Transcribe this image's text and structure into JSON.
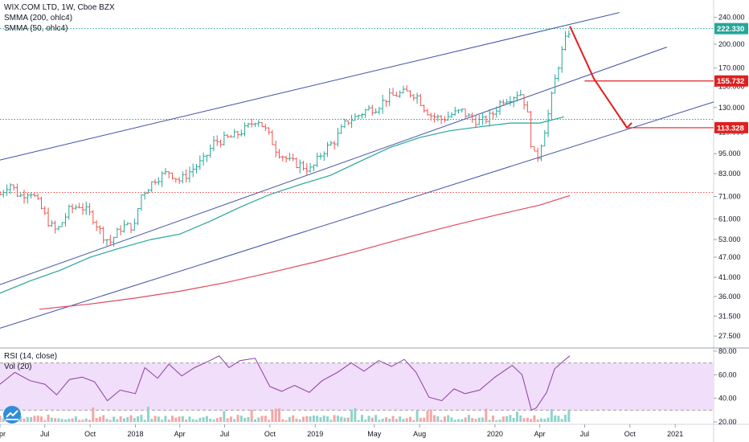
{
  "legend": {
    "main_title": "WIX.COM LTD, 1W, Cboe BZX",
    "ind1": "SMMA (200, ohlc4)",
    "ind2": "SMMA (50, ohlc4)",
    "rsi_label": "RSI (14, close)",
    "vol_label": "Vol (20)"
  },
  "colors": {
    "up": "#26a69a",
    "down": "#ef5350",
    "channel": "#3f51a5",
    "smma50": "#26a69a",
    "smma200": "#e04a5f",
    "arrow": "#e02020",
    "rsi_line": "#8e3ea0",
    "rsi_band": "#f0defa"
  },
  "chart_data": [
    {
      "type": "candlestick",
      "symbol": "WIX.COM LTD",
      "interval": "1W",
      "exchange": "Cboe BZX",
      "y_axis": {
        "scale": "log",
        "ylim": [
          25.5,
          270
        ],
        "ticks": [
          "240.000",
          "200.000",
          "170.000",
          "150.000",
          "130.000",
          "110.000",
          "95.000",
          "83.000",
          "71.000",
          "61.000",
          "53.000",
          "47.000",
          "41.000",
          "36.000",
          "31.500",
          "27.500"
        ]
      },
      "x_axis": {
        "range": [
          "2017-04-01",
          "2021-03-20"
        ],
        "ticks": [
          {
            "date": "2017-04-01",
            "label": "Apr"
          },
          {
            "date": "2017-07-01",
            "label": "Jul"
          },
          {
            "date": "2017-10-01",
            "label": "Oct"
          },
          {
            "date": "2018-01-01",
            "label": "2018"
          },
          {
            "date": "2018-04-01",
            "label": "Apr"
          },
          {
            "date": "2018-07-01",
            "label": "Jul"
          },
          {
            "date": "2018-10-01",
            "label": "Oct"
          },
          {
            "date": "2019-01-01",
            "label": "2019"
          },
          {
            "date": "2019-05-01",
            "label": "May"
          },
          {
            "date": "2019-08-01",
            "label": "Aug"
          },
          {
            "date": "2020-01-01",
            "label": "2020"
          },
          {
            "date": "2020-04-01",
            "label": "Apr"
          },
          {
            "date": "2020-07-01",
            "label": "Jul"
          },
          {
            "date": "2020-10-01",
            "label": "Oct"
          },
          {
            "date": "2021-01-01",
            "label": "2021"
          }
        ]
      },
      "price_path": [
        [
          "2017-04-01",
          72
        ],
        [
          "2017-04-20",
          78
        ],
        [
          "2017-05-10",
          71
        ],
        [
          "2017-06-01",
          74
        ],
        [
          "2017-06-20",
          67
        ],
        [
          "2017-07-10",
          59
        ],
        [
          "2017-07-25",
          56
        ],
        [
          "2017-08-20",
          65
        ],
        [
          "2017-09-10",
          67
        ],
        [
          "2017-10-05",
          62
        ],
        [
          "2017-10-25",
          55
        ],
        [
          "2017-11-10",
          52
        ],
        [
          "2017-12-05",
          58
        ],
        [
          "2017-12-31",
          58
        ],
        [
          "2018-01-10",
          71
        ],
        [
          "2018-02-10",
          80
        ],
        [
          "2018-03-10",
          84
        ],
        [
          "2018-04-01",
          79
        ],
        [
          "2018-04-25",
          85
        ],
        [
          "2018-05-20",
          91
        ],
        [
          "2018-06-10",
          103
        ],
        [
          "2018-06-25",
          104
        ],
        [
          "2018-07-20",
          107
        ],
        [
          "2018-08-15",
          113
        ],
        [
          "2018-09-05",
          121
        ],
        [
          "2018-09-25",
          110
        ],
        [
          "2018-10-15",
          97
        ],
        [
          "2018-11-10",
          90
        ],
        [
          "2018-12-01",
          88
        ],
        [
          "2018-12-24",
          85
        ],
        [
          "2019-01-15",
          96
        ],
        [
          "2019-02-10",
          104
        ],
        [
          "2019-03-05",
          118
        ],
        [
          "2019-03-25",
          122
        ],
        [
          "2019-04-15",
          128
        ],
        [
          "2019-05-05",
          130
        ],
        [
          "2019-05-25",
          138
        ],
        [
          "2019-06-15",
          142
        ],
        [
          "2019-07-05",
          144
        ],
        [
          "2019-07-25",
          142
        ],
        [
          "2019-08-10",
          130
        ],
        [
          "2019-08-25",
          123
        ],
        [
          "2019-09-15",
          120
        ],
        [
          "2019-10-05",
          124
        ],
        [
          "2019-10-25",
          127
        ],
        [
          "2019-11-15",
          120
        ],
        [
          "2019-12-05",
          118
        ],
        [
          "2019-12-25",
          123
        ],
        [
          "2020-01-15",
          137
        ],
        [
          "2020-02-05",
          140
        ],
        [
          "2020-02-20",
          145
        ],
        [
          "2020-03-05",
          130
        ],
        [
          "2020-03-15",
          100
        ],
        [
          "2020-03-25",
          90
        ],
        [
          "2020-04-15",
          118
        ],
        [
          "2020-05-05",
          165
        ],
        [
          "2020-05-20",
          200
        ],
        [
          "2020-06-01",
          222
        ]
      ],
      "smma50": [
        [
          "2017-04-01",
          36.8
        ],
        [
          "2017-06-01",
          40
        ],
        [
          "2017-08-01",
          43
        ],
        [
          "2017-10-01",
          47
        ],
        [
          "2017-12-01",
          50
        ],
        [
          "2018-02-01",
          53
        ],
        [
          "2018-04-01",
          55
        ],
        [
          "2018-06-01",
          60
        ],
        [
          "2018-08-01",
          66
        ],
        [
          "2018-10-01",
          72
        ],
        [
          "2018-12-01",
          77
        ],
        [
          "2019-02-01",
          82
        ],
        [
          "2019-04-01",
          90
        ],
        [
          "2019-06-01",
          99
        ],
        [
          "2019-08-01",
          106
        ],
        [
          "2019-10-01",
          111
        ],
        [
          "2019-12-01",
          114
        ],
        [
          "2020-02-01",
          117
        ],
        [
          "2020-04-01",
          117
        ],
        [
          "2020-05-20",
          122
        ]
      ],
      "smma200": [
        [
          "2017-06-20",
          33
        ],
        [
          "2017-10-01",
          34.2
        ],
        [
          "2018-01-01",
          35.6
        ],
        [
          "2018-04-01",
          37.3
        ],
        [
          "2018-07-01",
          39.5
        ],
        [
          "2018-10-01",
          42.3
        ],
        [
          "2019-01-01",
          45.5
        ],
        [
          "2019-04-01",
          49.2
        ],
        [
          "2019-07-01",
          53.5
        ],
        [
          "2019-10-01",
          58
        ],
        [
          "2020-01-01",
          62.5
        ],
        [
          "2020-04-01",
          67
        ],
        [
          "2020-06-01",
          71.5
        ]
      ],
      "channel_lines": [
        {
          "from": [
            "2017-04-01",
            91
          ],
          "to": [
            "2020-09-10",
            248
          ]
        },
        {
          "from": [
            "2017-04-01",
            39
          ],
          "to": [
            "2020-12-15",
            196
          ]
        },
        {
          "from": [
            "2017-04-01",
            29
          ],
          "to": [
            "2021-03-20",
            135
          ]
        }
      ],
      "horizontal_levels": [
        {
          "value": 222.33,
          "style": "dotted",
          "color": "#26a69a"
        },
        {
          "value": 120,
          "style": "dotted",
          "color": "#26a69a"
        },
        {
          "value": 73,
          "style": "dotted",
          "color": "#ef5350"
        }
      ],
      "target_lines": [
        {
          "value": 155.732,
          "from": "2020-07-01"
        },
        {
          "value": 113.328,
          "from": "2020-09-25"
        }
      ],
      "projection_arrow": [
        [
          "2020-06-01",
          226
        ],
        [
          "2020-07-20",
          158
        ],
        [
          "2020-09-25",
          113.328
        ]
      ],
      "price_labels": [
        {
          "value": 222.33,
          "text": "222.330",
          "color": "#26a69a"
        },
        {
          "value": 155.732,
          "text": "155.732",
          "color": "#e02020"
        },
        {
          "value": 113.328,
          "text": "113.328",
          "color": "#e02020"
        }
      ]
    },
    {
      "type": "line",
      "name": "RSI (14, close)",
      "ylim": [
        18,
        82
      ],
      "ticks": [
        "80.00",
        "60.00",
        "40.00",
        "20.00"
      ],
      "band": [
        30,
        70
      ],
      "points": [
        [
          "2017-04-01",
          52
        ],
        [
          "2017-05-01",
          62
        ],
        [
          "2017-06-01",
          55
        ],
        [
          "2017-07-01",
          52
        ],
        [
          "2017-07-25",
          43
        ],
        [
          "2017-08-20",
          56
        ],
        [
          "2017-09-15",
          58
        ],
        [
          "2017-10-10",
          54
        ],
        [
          "2017-11-05",
          38
        ],
        [
          "2017-12-01",
          47
        ],
        [
          "2018-01-01",
          44
        ],
        [
          "2018-01-20",
          66
        ],
        [
          "2018-02-15",
          57
        ],
        [
          "2018-03-10",
          69
        ],
        [
          "2018-04-05",
          59
        ],
        [
          "2018-05-01",
          66
        ],
        [
          "2018-06-01",
          72
        ],
        [
          "2018-06-20",
          76
        ],
        [
          "2018-07-10",
          66
        ],
        [
          "2018-08-01",
          72
        ],
        [
          "2018-09-01",
          74
        ],
        [
          "2018-10-01",
          50
        ],
        [
          "2018-10-25",
          46
        ],
        [
          "2018-11-20",
          51
        ],
        [
          "2018-12-20",
          45
        ],
        [
          "2019-01-15",
          55
        ],
        [
          "2019-02-15",
          62
        ],
        [
          "2019-03-15",
          70
        ],
        [
          "2019-04-10",
          63
        ],
        [
          "2019-05-10",
          72
        ],
        [
          "2019-06-05",
          67
        ],
        [
          "2019-07-01",
          73
        ],
        [
          "2019-07-25",
          62
        ],
        [
          "2019-08-20",
          41
        ],
        [
          "2019-09-15",
          38
        ],
        [
          "2019-10-10",
          48
        ],
        [
          "2019-11-01",
          44
        ],
        [
          "2019-12-01",
          47
        ],
        [
          "2020-01-01",
          58
        ],
        [
          "2020-02-05",
          68
        ],
        [
          "2020-02-25",
          60
        ],
        [
          "2020-03-15",
          30
        ],
        [
          "2020-03-25",
          32
        ],
        [
          "2020-04-15",
          45
        ],
        [
          "2020-05-01",
          65
        ],
        [
          "2020-05-20",
          72
        ],
        [
          "2020-06-01",
          76
        ]
      ],
      "volume_bars_from": "2017-04-01",
      "volume_bars_to": "2020-06-01"
    }
  ]
}
